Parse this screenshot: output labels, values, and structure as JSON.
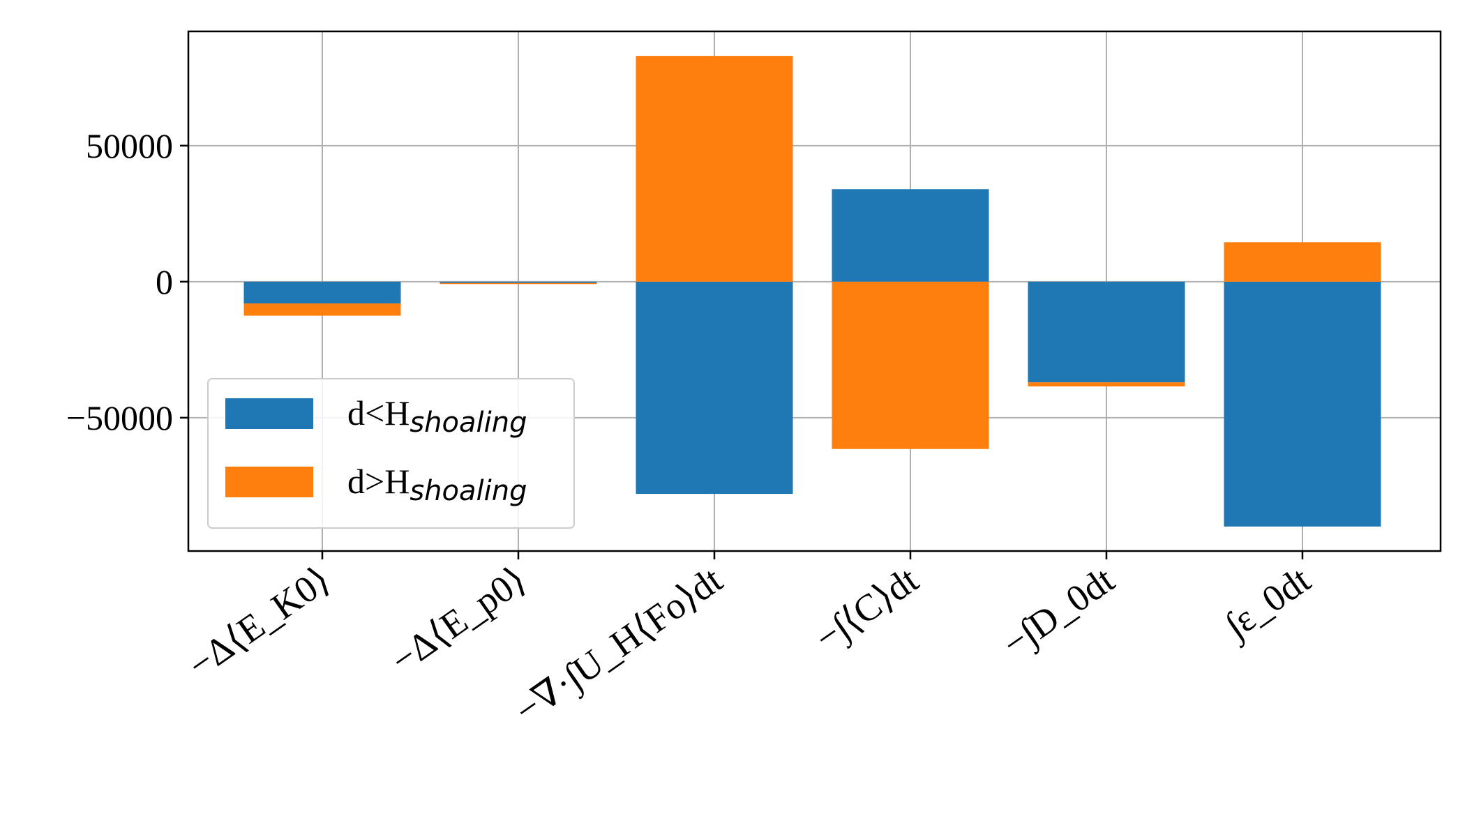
{
  "chart_data": {
    "type": "bar",
    "stacked": true,
    "categories": [
      "−Δ⟨E_K0⟩",
      "−Δ⟨E_p0⟩",
      "−∇·∫U_H⟨Fo⟩dt",
      "−∫⟨C⟩dt",
      "−∫D_0dt",
      "∫ε_0dt"
    ],
    "series": [
      {
        "name": "d<H_shoaling",
        "color": "#1f77b4",
        "values": [
          -8000,
          -500,
          -78000,
          34000,
          -37000,
          -90000
        ]
      },
      {
        "name": "d>H_shoaling",
        "color": "#ff7f0e",
        "values": [
          -4500,
          -200,
          83000,
          -61500,
          -1500,
          14500
        ]
      }
    ],
    "yticks": [
      -50000,
      0,
      50000
    ],
    "ytick_labels": [
      "−50000",
      "0",
      "50000"
    ],
    "ylim": [
      -99000,
      92000
    ],
    "grid": true,
    "legend_position": "lower-left",
    "legend_labels": [
      {
        "main": "d<H",
        "sub": "shoaling"
      },
      {
        "main": "d>H",
        "sub": "shoaling"
      }
    ],
    "title": "",
    "xlabel": "",
    "ylabel": ""
  }
}
